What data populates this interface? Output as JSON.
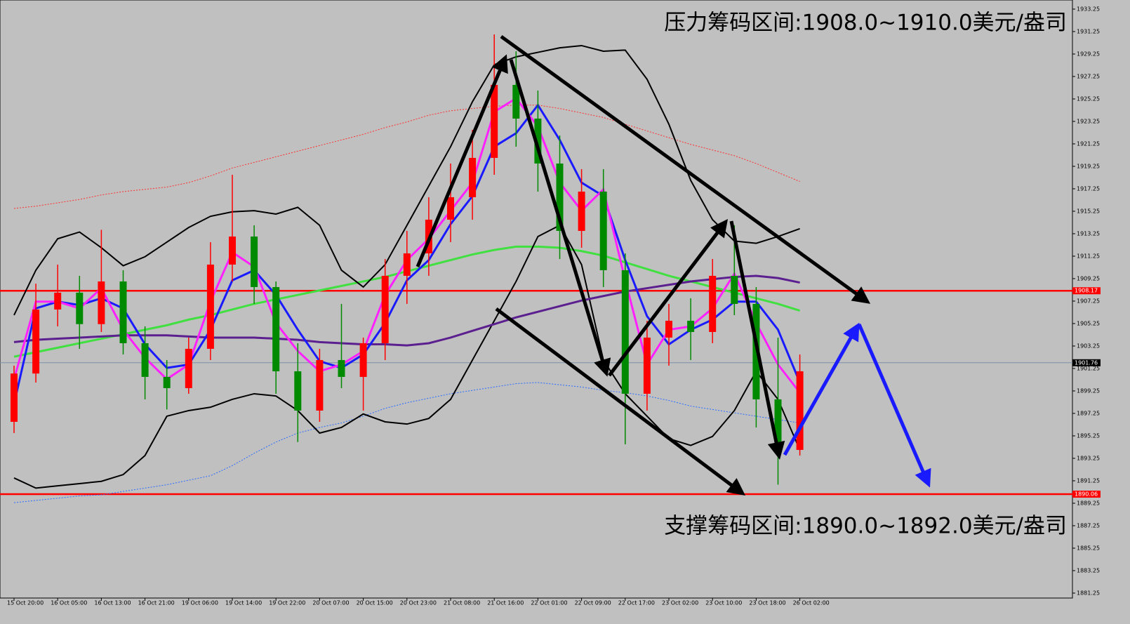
{
  "chart_data": {
    "type": "candlestick",
    "categories": [
      "15 Oct 20:00",
      null,
      "16 Oct 05:00",
      null,
      "16 Oct 13:00",
      null,
      "16 Oct 21:00",
      null,
      "19 Oct 06:00",
      null,
      "19 Oct 14:00",
      null,
      "19 Oct 22:00",
      null,
      "20 Oct 07:00",
      null,
      "20 Oct 15:00",
      null,
      "20 Oct 23:00",
      null,
      "21 Oct 08:00",
      null,
      "21 Oct 16:00",
      null,
      "22 Oct 01:00",
      null,
      "22 Oct 09:00",
      null,
      "22 Oct 17:00",
      null,
      "23 Oct 02:00",
      null,
      "23 Oct 10:00",
      null,
      "23 Oct 18:00",
      null,
      "26 Oct 02:00"
    ],
    "open": [
      1896.5,
      1900.8,
      1906.5,
      1908.0,
      1905.2,
      1909.0,
      1903.5,
      1900.5,
      1899.5,
      1903.0,
      1910.5,
      1913.0,
      1908.5,
      1901.0,
      1897.5,
      1902.0,
      1900.5,
      1903.5,
      1909.5,
      1911.5,
      1914.5,
      1916.5,
      1920.0,
      1926.5,
      1923.5,
      1919.5,
      1913.5,
      1917.0,
      1910.0,
      1899.0,
      1904.0,
      1905.5,
      1904.5,
      1909.5,
      1907.0,
      1898.5,
      1894.0
    ],
    "high": [
      1901.5,
      1908.8,
      1910.5,
      1909.5,
      1913.6,
      1910.0,
      1905.0,
      1902.0,
      1904.0,
      1912.5,
      1918.5,
      1914.0,
      1909.0,
      1903.5,
      1903.0,
      1907.0,
      1904.0,
      1911.0,
      1913.5,
      1916.5,
      1919.5,
      1922.5,
      1931.0,
      1929.5,
      1926.0,
      1922.0,
      1919.0,
      1919.0,
      1911.5,
      1905.5,
      1907.0,
      1907.5,
      1911.0,
      1914.0,
      1908.5,
      1904.0,
      1902.5
    ],
    "low": [
      1895.5,
      1900.0,
      1905.0,
      1903.0,
      1904.5,
      1902.5,
      1898.5,
      1897.6,
      1899.0,
      1902.0,
      1909.0,
      1907.0,
      1899.0,
      1894.7,
      1896.5,
      1899.5,
      1897.5,
      1902.0,
      1907.0,
      1909.5,
      1912.5,
      1914.5,
      1918.5,
      1921.0,
      1917.0,
      1911.0,
      1912.0,
      1908.5,
      1894.5,
      1897.5,
      1901.5,
      1902.0,
      1903.5,
      1906.0,
      1896.0,
      1890.9,
      1893.5
    ],
    "close": [
      1900.8,
      1906.5,
      1908.0,
      1905.2,
      1909.0,
      1903.5,
      1900.5,
      1899.5,
      1903.0,
      1910.5,
      1913.0,
      1908.5,
      1901.0,
      1897.5,
      1902.0,
      1900.5,
      1903.5,
      1909.5,
      1911.5,
      1914.5,
      1916.5,
      1920.0,
      1926.5,
      1923.5,
      1919.5,
      1913.5,
      1917.0,
      1910.0,
      1899.0,
      1904.0,
      1905.5,
      1904.5,
      1909.5,
      1907.0,
      1898.5,
      1894.0,
      1901.0
    ],
    "up_color": "#ff0000",
    "down_color": "#008a00",
    "series": [
      {
        "color": "#ff3030",
        "style": "dotted",
        "values": [
          1915.5,
          1915.7,
          1916.0,
          1916.3,
          1916.7,
          1917.0,
          1917.2,
          1917.4,
          1917.8,
          1918.4,
          1919.1,
          1919.6,
          1920.1,
          1920.6,
          1921.1,
          1921.6,
          1922.1,
          1922.7,
          1923.2,
          1923.8,
          1924.2,
          1924.4,
          1924.6,
          1924.7,
          1924.7,
          1924.4,
          1924.0,
          1923.6,
          1923.0,
          1922.4,
          1921.8,
          1921.2,
          1920.7,
          1920.2,
          1919.5,
          1918.7,
          1917.9
        ]
      },
      {
        "color": "#2a6bff",
        "style": "dotted",
        "values": [
          1889.3,
          1889.5,
          1889.7,
          1889.9,
          1890.0,
          1890.3,
          1890.6,
          1890.9,
          1891.3,
          1891.7,
          1892.6,
          1893.7,
          1894.7,
          1895.5,
          1896.0,
          1896.4,
          1897.0,
          1897.7,
          1898.2,
          1898.6,
          1899.0,
          1899.3,
          1899.6,
          1899.9,
          1900.0,
          1899.8,
          1899.6,
          1899.3,
          1899.1,
          1898.8,
          1898.4,
          1897.9,
          1897.6,
          1897.3,
          1897.0,
          1896.7,
          1896.4
        ]
      },
      {
        "color": "#40e040",
        "style": "solid",
        "values": [
          1902.3,
          1902.7,
          1903.1,
          1903.5,
          1903.9,
          1904.3,
          1904.7,
          1905.1,
          1905.6,
          1906.0,
          1906.5,
          1907.0,
          1907.4,
          1907.8,
          1908.2,
          1908.6,
          1909.0,
          1909.4,
          1909.9,
          1910.4,
          1910.9,
          1911.4,
          1911.8,
          1912.1,
          1912.1,
          1912.0,
          1911.7,
          1911.3,
          1910.7,
          1910.1,
          1909.5,
          1909.0,
          1908.5,
          1908.0,
          1907.5,
          1907.0,
          1906.4
        ]
      },
      {
        "color": "#000000",
        "style": "solid",
        "values": [
          1906.0,
          1910.0,
          1912.8,
          1913.4,
          1912.0,
          1910.4,
          1911.2,
          1912.5,
          1913.8,
          1914.8,
          1915.2,
          1915.3,
          1915.0,
          1915.6,
          1914.0,
          1910.0,
          1908.5,
          1910.5,
          1914.0,
          1917.5,
          1921.0,
          1925.0,
          1928.3,
          1929.0,
          1929.4,
          1929.8,
          1930.0,
          1929.5,
          1929.6,
          1927.0,
          1923.0,
          1918.0,
          1914.5,
          1912.6,
          1912.4,
          1913.0,
          1913.7
        ]
      },
      {
        "color": "#000000",
        "style": "solid",
        "values": [
          1891.5,
          1890.6,
          1890.8,
          1891.0,
          1891.2,
          1891.8,
          1893.5,
          1897.0,
          1897.5,
          1897.8,
          1898.5,
          1899.0,
          1898.8,
          1897.5,
          1895.5,
          1896.0,
          1897.2,
          1896.5,
          1896.3,
          1896.8,
          1898.5,
          1902.0,
          1905.5,
          1909.0,
          1913.0,
          1914.0,
          1910.5,
          1902.0,
          1899.0,
          1897.0,
          1895.0,
          1894.4,
          1895.2,
          1897.5,
          1901.0,
          1898.5,
          1894.0
        ]
      },
      {
        "color": "#5b1f8f",
        "style": "solid",
        "values": [
          1903.6,
          1903.8,
          1903.9,
          1904.0,
          1904.1,
          1904.2,
          1904.2,
          1904.2,
          1904.1,
          1904.0,
          1904.0,
          1904.0,
          1903.9,
          1903.8,
          1903.6,
          1903.5,
          1903.4,
          1903.4,
          1903.3,
          1903.5,
          1904.0,
          1904.6,
          1905.2,
          1905.8,
          1906.3,
          1906.8,
          1907.3,
          1907.7,
          1908.1,
          1908.4,
          1908.7,
          1909.0,
          1909.2,
          1909.4,
          1909.5,
          1909.3,
          1908.9
        ]
      },
      {
        "color": "#1a1aff",
        "style": "solid",
        "values": [
          1898.1,
          1906.6,
          1907.2,
          1906.9,
          1907.5,
          1906.6,
          1903.4,
          1901.3,
          1901.6,
          1904.7,
          1909.1,
          1910.0,
          1907.8,
          1904.7,
          1901.9,
          1901.3,
          1902.5,
          1905.3,
          1909.1,
          1910.9,
          1914.1,
          1916.6,
          1921.0,
          1922.2,
          1924.7,
          1921.6,
          1917.8,
          1916.6,
          1910.9,
          1905.9,
          1903.4,
          1904.7,
          1905.6,
          1907.2,
          1907.2,
          1904.7,
          1900.0
        ]
      },
      {
        "color": "#ff20ff",
        "style": "solid",
        "values": [
          1900.3,
          1907.2,
          1907.2,
          1906.6,
          1908.4,
          1904.7,
          1902.2,
          1900.3,
          1901.6,
          1907.2,
          1911.6,
          1910.3,
          1905.3,
          1902.8,
          1901.0,
          1901.6,
          1902.8,
          1907.8,
          1910.9,
          1912.8,
          1915.3,
          1917.8,
          1924.1,
          1925.3,
          1922.8,
          1917.8,
          1915.3,
          1917.2,
          1909.1,
          1901.6,
          1904.7,
          1905.0,
          1906.6,
          1909.7,
          1905.3,
          1901.6,
          1899.1
        ]
      }
    ],
    "price_lines": [
      {
        "value": 1908.17,
        "color": "#ff0000"
      },
      {
        "value": 1901.76,
        "color": "#7a8fa8",
        "label_color": "#000000"
      },
      {
        "value": 1890.06,
        "color": "#ff0000"
      }
    ],
    "annotations": [
      "压力筹码区间:1908.0~1910.0美元/盎司",
      "支撑筹码区间:1890.0~1892.0美元/盎司"
    ],
    "ylim": [
      1880.81,
      1934.06
    ],
    "yticks": [
      1881.25,
      1883.25,
      1885.25,
      1887.25,
      1889.25,
      1891.25,
      1893.25,
      1895.25,
      1897.25,
      1899.25,
      1901.25,
      1903.25,
      1905.25,
      1907.25,
      1909.25,
      1911.25,
      1913.25,
      1915.25,
      1917.25,
      1919.25,
      1921.25,
      1923.25,
      1925.25,
      1927.25,
      1929.25,
      1931.25,
      1933.25
    ]
  }
}
